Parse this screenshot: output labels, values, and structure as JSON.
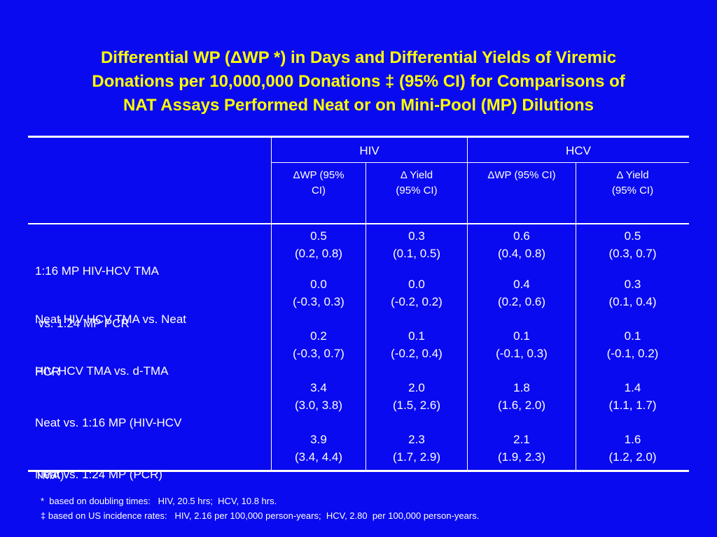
{
  "slide": {
    "background": "#0a0af0",
    "title_color": "#ffff00",
    "title_lines": [
      "Differential WP (ΔWP *) in Days and Differential Yields of Viremic",
      "Donations per 10,000,000 Donations ‡ (95% CI) for Comparisons of",
      "NAT Assays Performed Neat or on Mini-Pool (MP) Dilutions"
    ]
  },
  "table": {
    "group_headers": [
      "HIV",
      "HCV"
    ],
    "sub_headers": [
      [
        "ΔWP (95%",
        "CI)"
      ],
      [
        "Δ Yield",
        "(95% CI)"
      ],
      [
        "ΔWP (95% CI)",
        ""
      ],
      [
        "Δ Yield",
        "(95% CI)"
      ]
    ],
    "rows": [
      {
        "label": [
          "1:16 MP HIV-HCV TMA",
          " vs. 1:24 MP PCR"
        ],
        "values": [
          [
            "0.5",
            "(0.2, 0.8)"
          ],
          [
            "0.3",
            "(0.1, 0.5)"
          ],
          [
            "0.6",
            "(0.4, 0.8)"
          ],
          [
            "0.5",
            "(0.3, 0.7)"
          ]
        ]
      },
      {
        "label": [
          "Neat HIV-HCV TMA vs. Neat",
          "PCR"
        ],
        "values": [
          [
            "0.0",
            "(-0.3, 0.3)"
          ],
          [
            "0.0",
            "(-0.2, 0.2)"
          ],
          [
            "0.4",
            "(0.2, 0.6)"
          ],
          [
            "0.3",
            "(0.1, 0.4)"
          ]
        ]
      },
      {
        "label": [
          "HIV-HCV TMA vs. d-TMA",
          ""
        ],
        "values": [
          [
            "0.2",
            "(-0.3, 0.7)"
          ],
          [
            "0.1",
            "(-0.2, 0.4)"
          ],
          [
            "0.1",
            "(-0.1, 0.3)"
          ],
          [
            "0.1",
            "(-0.1, 0.2)"
          ]
        ]
      },
      {
        "label": [
          "Neat vs. 1:16 MP (HIV-HCV",
          "TMA)"
        ],
        "values": [
          [
            "3.4",
            "(3.0, 3.8)"
          ],
          [
            "2.0",
            "(1.5, 2.6)"
          ],
          [
            "1.8",
            "(1.6, 2.0)"
          ],
          [
            "1.4",
            "(1.1, 1.7)"
          ]
        ]
      },
      {
        "label": [
          "Neat vs. 1:24 MP (PCR)",
          ""
        ],
        "values": [
          [
            "3.9",
            "(3.4, 4.4)"
          ],
          [
            "2.3",
            "(1.7, 2.9)"
          ],
          [
            "2.1",
            "(1.9, 2.3)"
          ],
          [
            "1.6",
            "(1.2, 2.0)"
          ]
        ]
      }
    ]
  },
  "footnotes": [
    "*  based on doubling times:   HIV, 20.5 hrs;  HCV, 10.8 hrs.",
    "‡ based on US incidence rates:   HIV, 2.16 per 100,000 person-years;  HCV, 2.80  per 100,000 person-years."
  ]
}
